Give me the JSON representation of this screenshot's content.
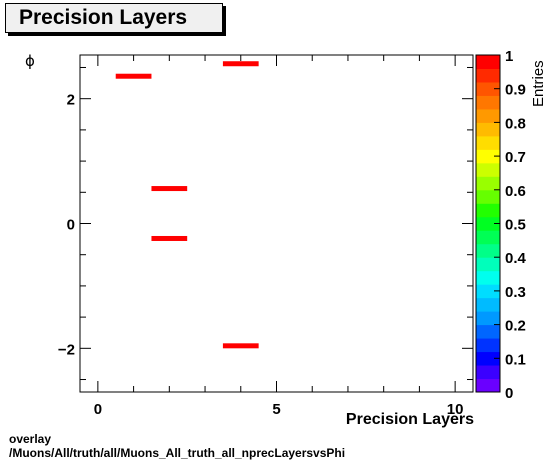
{
  "page": {
    "title": "Precision Layers",
    "footer_line1": "overlay",
    "footer_line2": "/Muons/All/truth/all/Muons_All_truth_all_nprecLayersvsPhi"
  },
  "chart_data": {
    "type": "heatmap",
    "title": "Precision Layers",
    "xlabel": "Precision Layers",
    "ylabel": "ϕ",
    "zlabel": "Entries",
    "xlim": [
      -0.5,
      10.5
    ],
    "ylim": [
      -2.7,
      2.7
    ],
    "zlim": [
      0,
      1
    ],
    "xticks": [
      0,
      5,
      10
    ],
    "yticks": [
      -2,
      0,
      2
    ],
    "zticks": [
      0,
      0.1,
      0.2,
      0.3,
      0.4,
      0.5,
      0.6,
      0.7,
      0.8,
      0.9,
      1
    ],
    "tick_labels": {
      "x": [
        "0",
        "5",
        "10"
      ],
      "y": [
        "−2",
        "0",
        "2"
      ],
      "z": [
        "0",
        "0.1",
        "0.2",
        "0.3",
        "0.4",
        "0.5",
        "0.6",
        "0.7",
        "0.8",
        "0.9",
        "1"
      ]
    },
    "bar_color": "#ff0000",
    "cells": [
      {
        "x": 1,
        "y": 2.36,
        "z": 1
      },
      {
        "x": 2,
        "y": 0.56,
        "z": 1
      },
      {
        "x": 2,
        "y": -0.24,
        "z": 1
      },
      {
        "x": 4,
        "y": 2.56,
        "z": 1
      },
      {
        "x": 4,
        "y": -1.96,
        "z": 1
      }
    ],
    "palette": [
      "#6a00ff",
      "#3b00ff",
      "#0000ff",
      "#0033ff",
      "#0066ff",
      "#0099ff",
      "#00bbff",
      "#00ddff",
      "#00ffee",
      "#00ffbb",
      "#00ff88",
      "#00ff55",
      "#00ff22",
      "#22ff00",
      "#66ff00",
      "#99ff00",
      "#ccff00",
      "#ffff00",
      "#ffdd00",
      "#ffbb00",
      "#ff9900",
      "#ff7700",
      "#ff5500",
      "#ff2a00",
      "#ff0000"
    ]
  }
}
